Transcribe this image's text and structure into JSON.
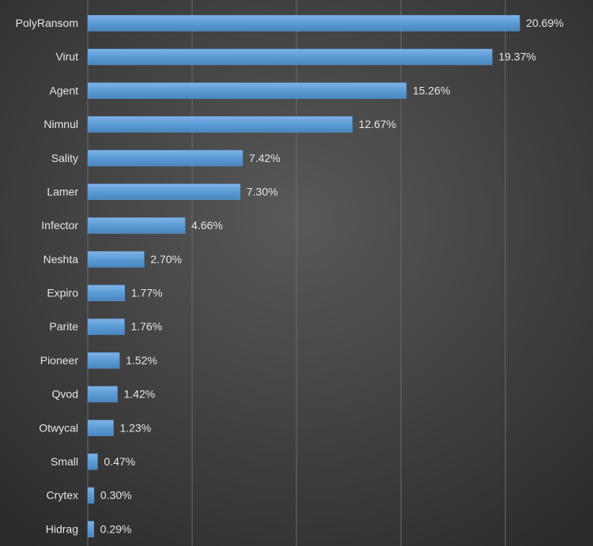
{
  "chart_data": {
    "type": "barh",
    "categories": [
      "PolyRansom",
      "Virut",
      "Agent",
      "Nimnul",
      "Sality",
      "Lamer",
      "Infector",
      "Neshta",
      "Expiro",
      "Parite",
      "Pioneer",
      "Qvod",
      "Otwycal",
      "Small",
      "Crytex",
      "Hidrag"
    ],
    "values": [
      20.69,
      19.37,
      15.26,
      12.67,
      7.42,
      7.3,
      4.66,
      2.7,
      1.77,
      1.76,
      1.52,
      1.42,
      1.23,
      0.47,
      0.3,
      0.29
    ],
    "value_labels": [
      "20.69%",
      "19.37%",
      "15.26%",
      "12.67%",
      "7.42%",
      "7.30%",
      "4.66%",
      "2.70%",
      "1.77%",
      "1.76%",
      "1.52%",
      "1.42%",
      "1.23%",
      "0.47%",
      "0.30%",
      "0.29%"
    ],
    "color": "#5b9bd5",
    "xlim": [
      0,
      24.2
    ],
    "xticks": [
      0,
      5,
      10,
      15,
      20
    ],
    "grid": true
  }
}
